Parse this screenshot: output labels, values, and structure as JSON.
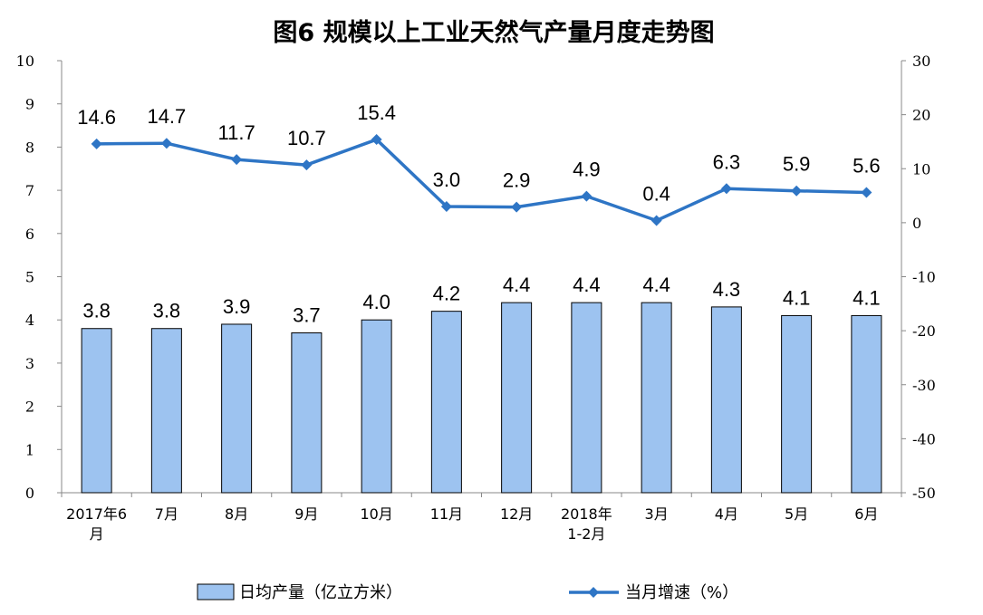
{
  "chart_data": {
    "type": "bar+line",
    "title": "图6 规模以上工业天然气产量月度走势图",
    "categories": [
      [
        "2017年6",
        "月"
      ],
      [
        "7月"
      ],
      [
        "8月"
      ],
      [
        "9月"
      ],
      [
        "10月"
      ],
      [
        "11月"
      ],
      [
        "12月"
      ],
      [
        "2018年",
        "1-2月"
      ],
      [
        "3月"
      ],
      [
        "4月"
      ],
      [
        "5月"
      ],
      [
        "6月"
      ]
    ],
    "series": [
      {
        "name": "日均产量（亿立方米）",
        "type": "bar",
        "axis": "left",
        "color": "#9DC3F0",
        "values": [
          3.8,
          3.8,
          3.9,
          3.7,
          4.0,
          4.2,
          4.4,
          4.4,
          4.4,
          4.3,
          4.1,
          4.1
        ],
        "labels": [
          "3.8",
          "3.8",
          "3.9",
          "3.7",
          "4.0",
          "4.2",
          "4.4",
          "4.4",
          "4.4",
          "4.3",
          "4.1",
          "4.1"
        ]
      },
      {
        "name": "当月增速（%）",
        "type": "line",
        "axis": "right",
        "color": "#2E75C5",
        "values": [
          14.6,
          14.7,
          11.7,
          10.7,
          15.4,
          3.0,
          2.9,
          4.9,
          0.4,
          6.3,
          5.9,
          5.6
        ],
        "labels": [
          "14.6",
          "14.7",
          "11.7",
          "10.7",
          "15.4",
          "3.0",
          "2.9",
          "4.9",
          "0.4",
          "6.3",
          "5.9",
          "5.6"
        ]
      }
    ],
    "yleft": {
      "min": 0,
      "max": 10,
      "step": 1,
      "ticks": [
        "0",
        "1",
        "2",
        "3",
        "4",
        "5",
        "6",
        "7",
        "8",
        "9",
        "10"
      ]
    },
    "yright": {
      "min": -50,
      "max": 30,
      "step": 10,
      "ticks": [
        "-50",
        "-40",
        "-30",
        "-20",
        "-10",
        "0",
        "10",
        "20",
        "30"
      ]
    },
    "grid": false,
    "legend_position": "bottom"
  }
}
